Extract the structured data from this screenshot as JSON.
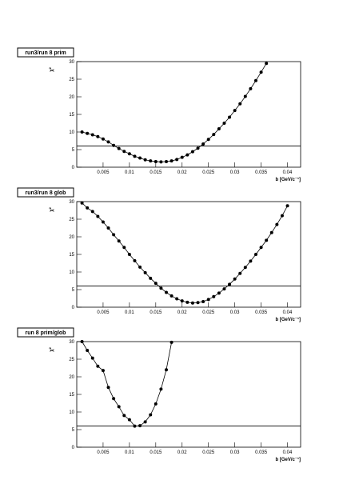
{
  "chart_data": [
    {
      "type": "line",
      "title": "run3/run 8 prim",
      "xlabel": "b [GeV/c⁻¹]",
      "ylabel": "χ²",
      "color": "#000000",
      "x": [
        0.001,
        0.002,
        0.003,
        0.004,
        0.005,
        0.006,
        0.007,
        0.008,
        0.009,
        0.01,
        0.011,
        0.012,
        0.013,
        0.014,
        0.015,
        0.016,
        0.017,
        0.018,
        0.019,
        0.02,
        0.021,
        0.022,
        0.023,
        0.024,
        0.025,
        0.026,
        0.027,
        0.028,
        0.029,
        0.03,
        0.031,
        0.032,
        0.033,
        0.034,
        0.035,
        0.036
      ],
      "values": [
        10,
        9.6,
        9.2,
        8.7,
        8,
        7.2,
        6.2,
        5.3,
        4.5,
        3.8,
        3.1,
        2.6,
        2.1,
        1.8,
        1.6,
        1.5,
        1.6,
        1.8,
        2.2,
        2.8,
        3.5,
        4.4,
        5.4,
        6.6,
        7.9,
        9.3,
        10.9,
        12.5,
        14.2,
        16.1,
        18,
        20.1,
        22.3,
        24.6,
        27,
        29.5
      ],
      "reference_line": 6,
      "xlim": [
        0,
        0.0425
      ],
      "ylim": [
        0,
        30
      ],
      "xticks": [
        0.005,
        0.01,
        0.015,
        0.02,
        0.025,
        0.03,
        0.035,
        0.04
      ],
      "yticks": [
        0,
        5,
        10,
        15,
        20,
        25,
        30
      ]
    },
    {
      "type": "line",
      "title": "run3/run 8 glob",
      "xlabel": "b [GeV/c⁻¹]",
      "ylabel": "χ²",
      "color": "#000000",
      "x": [
        0.001,
        0.002,
        0.003,
        0.004,
        0.005,
        0.006,
        0.007,
        0.008,
        0.009,
        0.01,
        0.011,
        0.012,
        0.013,
        0.014,
        0.015,
        0.016,
        0.017,
        0.018,
        0.019,
        0.02,
        0.021,
        0.022,
        0.023,
        0.024,
        0.025,
        0.026,
        0.027,
        0.028,
        0.029,
        0.03,
        0.031,
        0.032,
        0.033,
        0.034,
        0.035,
        0.036,
        0.037,
        0.038,
        0.039,
        0.04
      ],
      "values": [
        29.6,
        28.2,
        27.2,
        25.8,
        24.2,
        22.5,
        20.6,
        18.8,
        17,
        15,
        13.2,
        11.4,
        9.8,
        8.2,
        6.8,
        5.4,
        4.2,
        3.2,
        2.4,
        1.8,
        1.4,
        1.2,
        1.3,
        1.6,
        2.2,
        3,
        4,
        5.2,
        6.5,
        8,
        9.6,
        11.3,
        13.1,
        15,
        17,
        19,
        21.2,
        23.5,
        26,
        28.8
      ],
      "reference_line": 6,
      "xlim": [
        0,
        0.0425
      ],
      "ylim": [
        0,
        30
      ],
      "xticks": [
        0.005,
        0.01,
        0.015,
        0.02,
        0.025,
        0.03,
        0.035,
        0.04
      ],
      "yticks": [
        0,
        5,
        10,
        15,
        20,
        25,
        30
      ]
    },
    {
      "type": "line",
      "title": "run 8 prim/glob",
      "xlabel": "b [GeV/c⁻¹]",
      "ylabel": "χ²",
      "color": "#000000",
      "x": [
        0.001,
        0.002,
        0.003,
        0.004,
        0.005,
        0.006,
        0.007,
        0.008,
        0.009,
        0.01,
        0.011,
        0.012,
        0.013,
        0.014,
        0.015,
        0.016,
        0.017,
        0.018
      ],
      "values": [
        30,
        27.5,
        25.3,
        23,
        21.8,
        17,
        13.8,
        11.5,
        9,
        7.8,
        6,
        6.1,
        7.2,
        9.2,
        12.3,
        16.5,
        22,
        29.8
      ],
      "reference_line": 6,
      "xlim": [
        0,
        0.0425
      ],
      "ylim": [
        0,
        30
      ],
      "xticks": [
        0.005,
        0.01,
        0.015,
        0.02,
        0.025,
        0.03,
        0.035,
        0.04
      ],
      "yticks": [
        0,
        5,
        10,
        15,
        20,
        25,
        30
      ]
    }
  ]
}
